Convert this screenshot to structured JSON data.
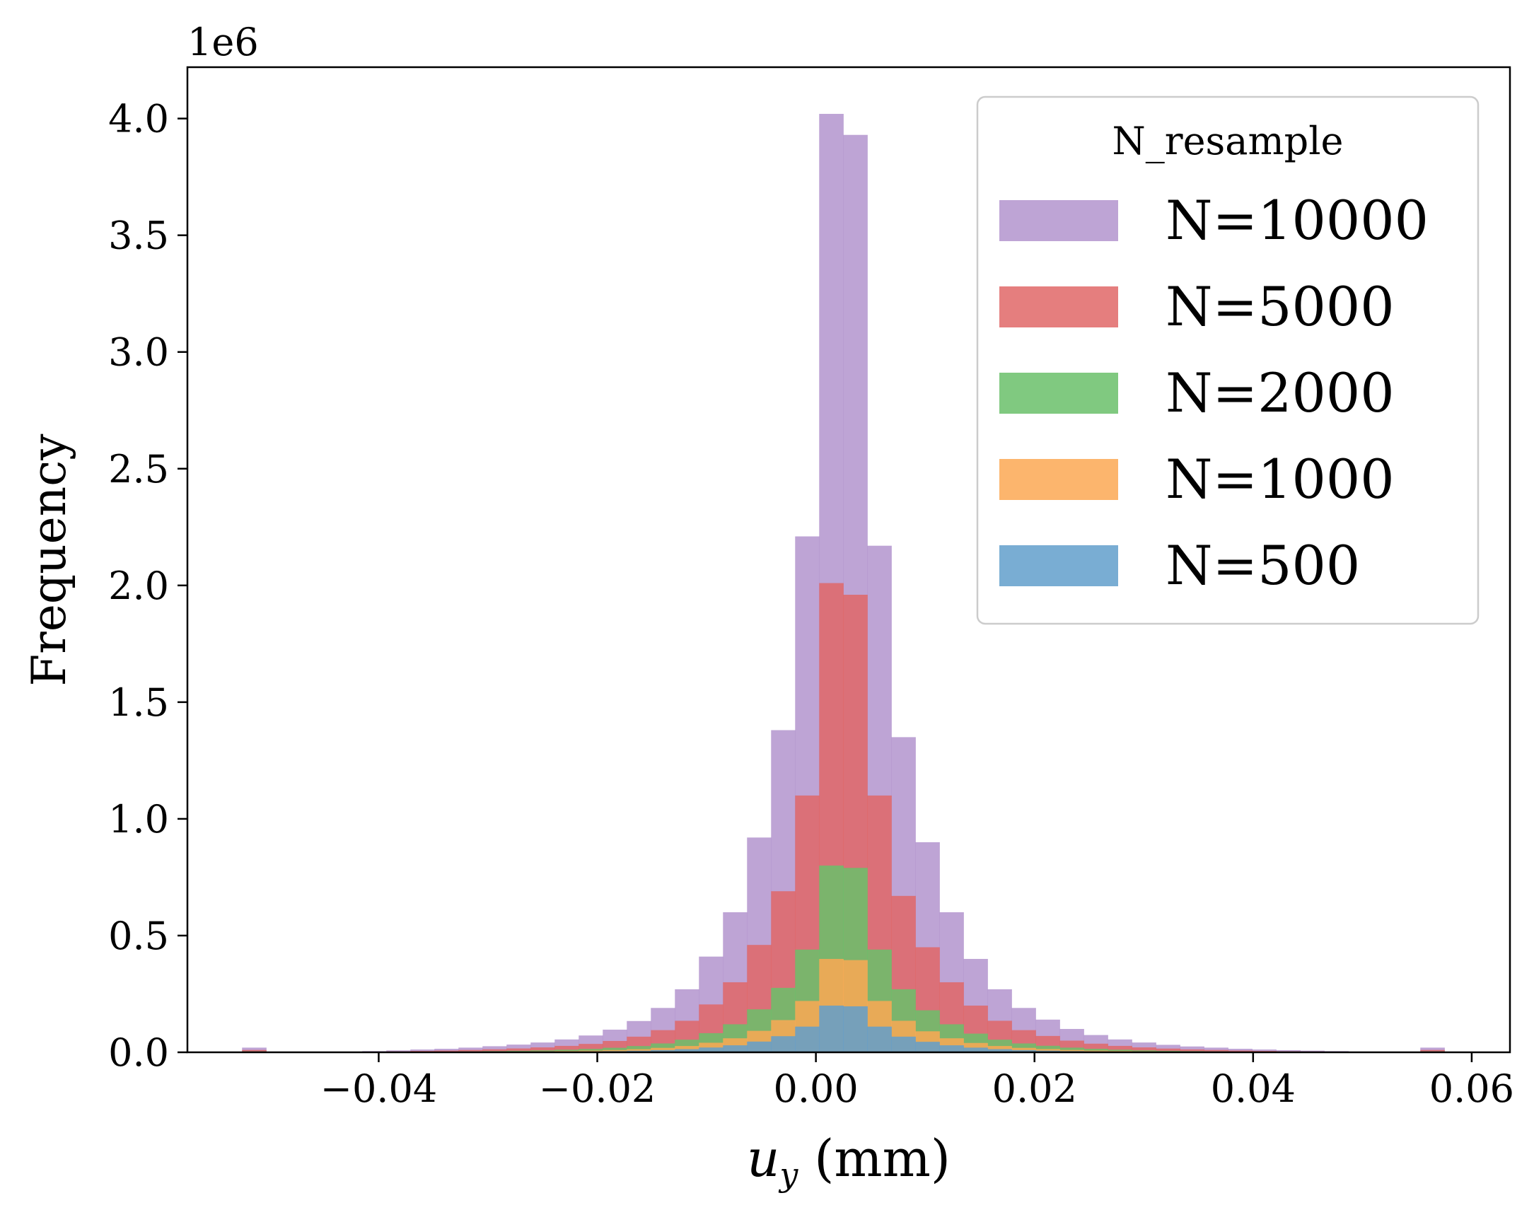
{
  "chart_data": {
    "type": "bar",
    "subtype": "overlaid-histogram",
    "xlabel_symbol": "u",
    "xlabel_subscript": "y",
    "xlabel_unit": " (mm)",
    "ylabel": "Frequency",
    "y_offset_label": "1e6",
    "xlim": [
      -0.0575,
      0.0635
    ],
    "ylim": [
      0,
      4.22
    ],
    "x_ticks": [
      -0.04,
      -0.02,
      0.0,
      0.02,
      0.04,
      0.06
    ],
    "x_tick_labels": [
      "−0.04",
      "−0.02",
      "0.00",
      "0.02",
      "0.04",
      "0.06"
    ],
    "y_ticks": [
      0,
      0.5,
      1.0,
      1.5,
      2.0,
      2.5,
      3.0,
      3.5,
      4.0
    ],
    "y_tick_labels": [
      "0.0",
      "0.5",
      "1.0",
      "1.5",
      "2.0",
      "2.5",
      "3.0",
      "3.5",
      "4.0"
    ],
    "y_unit_multiplier": 1000000,
    "bin_start": -0.0525,
    "bin_width": 0.0022,
    "bin_count": 50,
    "legend": {
      "title": "N_resample",
      "position": "top-right",
      "entries": [
        "N=10000",
        "N=5000",
        "N=2000",
        "N=1000",
        "N=500"
      ]
    },
    "series": [
      {
        "name": "N=10000",
        "color": "#b394ce",
        "values": [
          0.02,
          0,
          0,
          0,
          0,
          0.005,
          0.008,
          0.012,
          0.015,
          0.02,
          0.026,
          0.033,
          0.042,
          0.055,
          0.072,
          0.097,
          0.134,
          0.19,
          0.27,
          0.41,
          0.6,
          0.92,
          1.38,
          2.21,
          4.02,
          3.93,
          2.17,
          1.35,
          0.9,
          0.6,
          0.4,
          0.27,
          0.19,
          0.14,
          0.1,
          0.074,
          0.055,
          0.042,
          0.032,
          0.025,
          0.02,
          0.015,
          0.012,
          0.009,
          0.007,
          0.005,
          0,
          0,
          0,
          0.02
        ]
      },
      {
        "name": "N=5000",
        "color": "#e06767",
        "values": [
          0.01,
          0,
          0,
          0,
          0,
          0.0025,
          0.004,
          0.006,
          0.0075,
          0.01,
          0.013,
          0.0165,
          0.021,
          0.0275,
          0.036,
          0.0485,
          0.067,
          0.095,
          0.135,
          0.205,
          0.3,
          0.46,
          0.69,
          1.1,
          2.01,
          1.96,
          1.1,
          0.67,
          0.45,
          0.3,
          0.2,
          0.135,
          0.095,
          0.07,
          0.05,
          0.037,
          0.0275,
          0.021,
          0.016,
          0.0125,
          0.01,
          0.0075,
          0.006,
          0.0045,
          0.0035,
          0.0025,
          0,
          0,
          0,
          0.01
        ]
      },
      {
        "name": "N=2000",
        "color": "#6abf6a",
        "values": [
          0.004,
          0,
          0,
          0,
          0,
          0.001,
          0.0016,
          0.0024,
          0.003,
          0.004,
          0.0052,
          0.0066,
          0.0084,
          0.011,
          0.0144,
          0.0194,
          0.0268,
          0.038,
          0.054,
          0.082,
          0.12,
          0.184,
          0.276,
          0.44,
          0.8,
          0.79,
          0.44,
          0.27,
          0.18,
          0.12,
          0.08,
          0.054,
          0.038,
          0.028,
          0.02,
          0.0148,
          0.011,
          0.0084,
          0.0064,
          0.005,
          0.004,
          0.003,
          0.0024,
          0.0018,
          0.0014,
          0.001,
          0,
          0,
          0,
          0.004
        ]
      },
      {
        "name": "N=1000",
        "color": "#fca854",
        "values": [
          0.002,
          0,
          0,
          0,
          0,
          0.0005,
          0.0008,
          0.0012,
          0.0015,
          0.002,
          0.0026,
          0.0033,
          0.0042,
          0.0055,
          0.0072,
          0.0097,
          0.0134,
          0.019,
          0.027,
          0.041,
          0.06,
          0.092,
          0.138,
          0.22,
          0.4,
          0.395,
          0.22,
          0.135,
          0.09,
          0.06,
          0.04,
          0.027,
          0.019,
          0.014,
          0.01,
          0.0074,
          0.0055,
          0.0042,
          0.0032,
          0.0025,
          0.002,
          0.0015,
          0.0012,
          0.0009,
          0.0007,
          0.0005,
          0,
          0,
          0,
          0.002
        ]
      },
      {
        "name": "N=500",
        "color": "#629fcb",
        "values": [
          0.001,
          0,
          0,
          0,
          0,
          0.00025,
          0.0004,
          0.0006,
          0.00075,
          0.001,
          0.0013,
          0.00165,
          0.0021,
          0.00275,
          0.0036,
          0.00485,
          0.0067,
          0.0095,
          0.0135,
          0.0205,
          0.03,
          0.046,
          0.069,
          0.11,
          0.2,
          0.197,
          0.11,
          0.067,
          0.045,
          0.03,
          0.02,
          0.0135,
          0.0095,
          0.007,
          0.005,
          0.0037,
          0.00275,
          0.0021,
          0.0016,
          0.00125,
          0.001,
          0.00075,
          0.0006,
          0.00045,
          0.00035,
          0.00025,
          0,
          0,
          0,
          0.001
        ]
      }
    ]
  }
}
